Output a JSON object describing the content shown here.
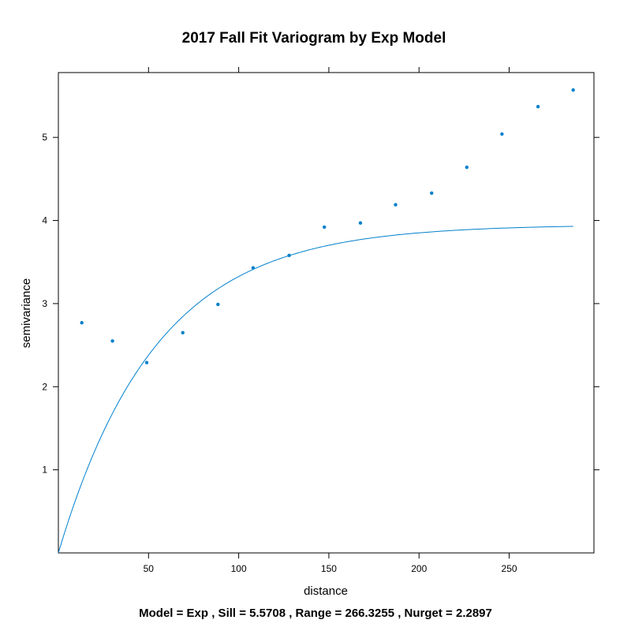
{
  "chart_data": {
    "type": "scatter",
    "title": "2017 Fall Fit Variogram by Exp Model",
    "xlabel": "distance",
    "ylabel": "semivariance",
    "caption": "Model = Exp , Sill = 5.5708 , Range = 266.3255 , Nurget = 2.2897",
    "xlim": [
      0,
      297
    ],
    "ylim": [
      0,
      5.78
    ],
    "xticks": [
      50,
      100,
      150,
      200,
      250
    ],
    "yticks": [
      1,
      2,
      3,
      4,
      5
    ],
    "grid": false,
    "color": "#0080cc",
    "points": {
      "x": [
        13,
        30,
        49,
        69,
        88.5,
        108,
        128,
        147.5,
        167.5,
        187,
        207,
        226.5,
        246,
        266,
        285.5
      ],
      "y": [
        2.77,
        2.55,
        2.29,
        2.65,
        2.99,
        3.43,
        3.58,
        3.92,
        3.97,
        4.19,
        4.33,
        4.64,
        5.04,
        5.37,
        5.57
      ]
    },
    "model_curve": {
      "type": "exponential",
      "psill": 3.95,
      "range_param": 54.2,
      "x_max": 285.5
    }
  }
}
